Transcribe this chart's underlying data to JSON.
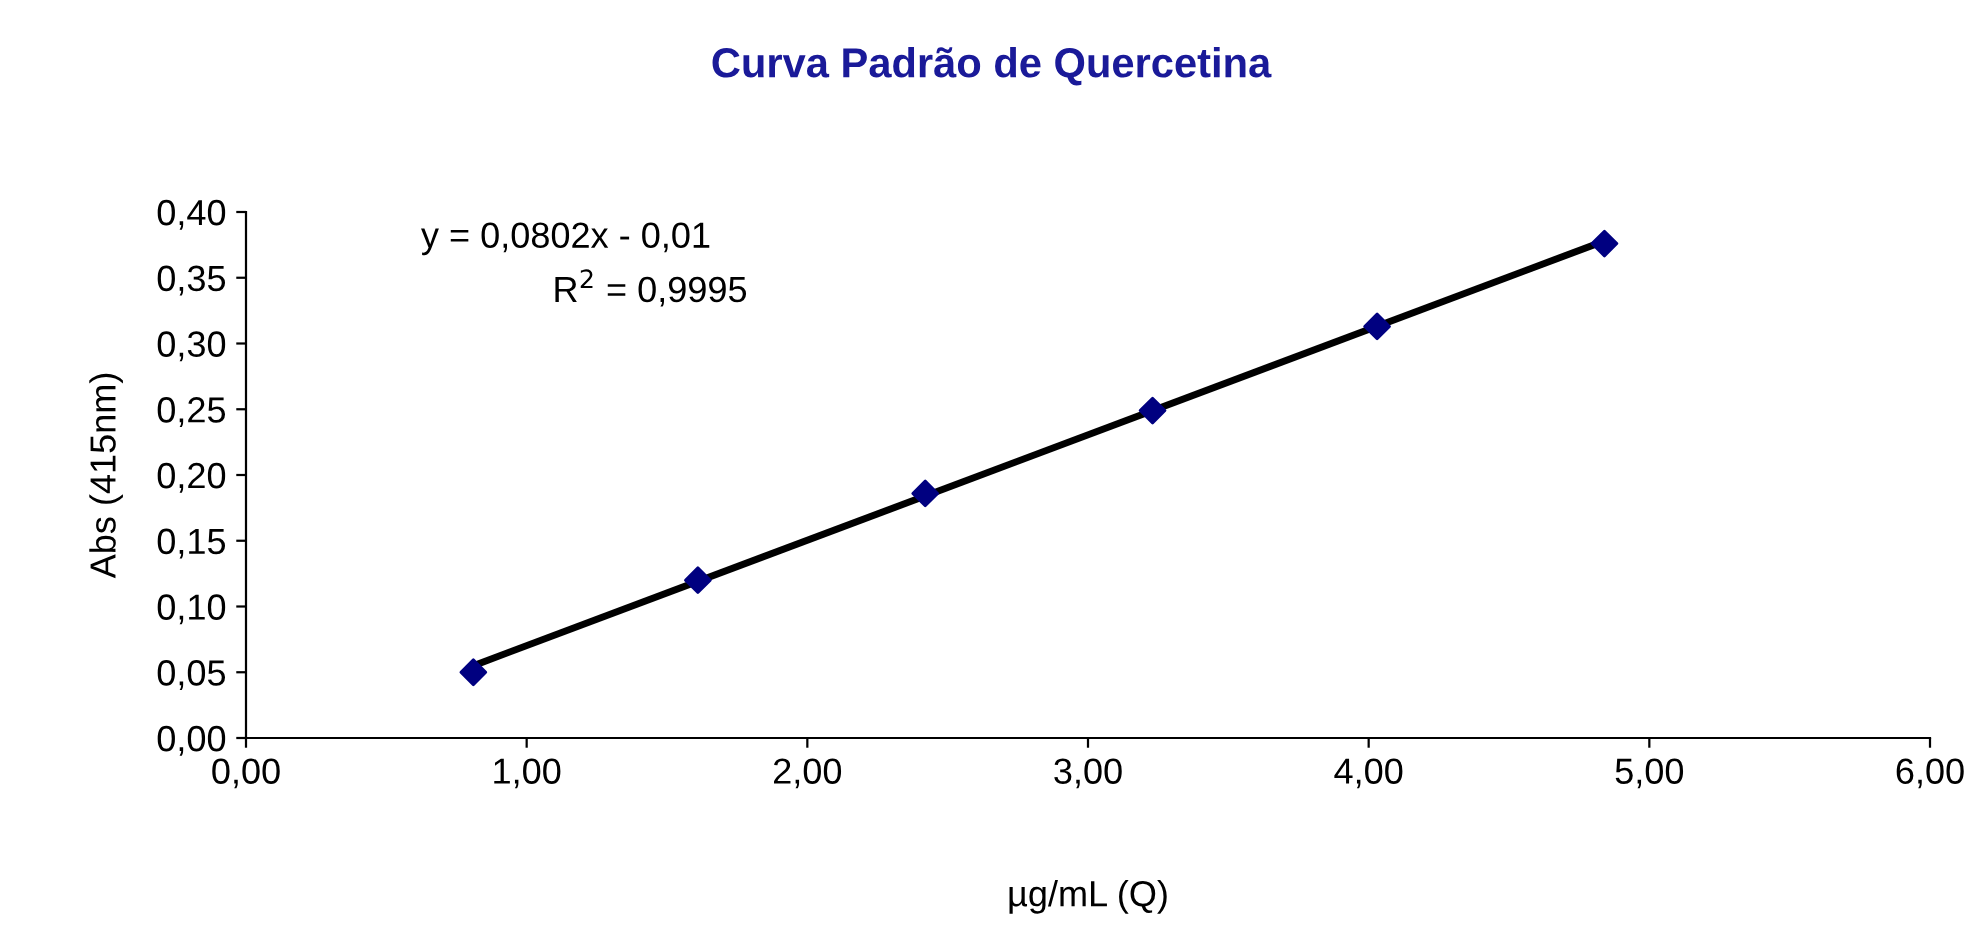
{
  "chart_data": {
    "type": "scatter",
    "title": "Curva Padrão de Quercetina",
    "xlabel": "µg/mL (Q)",
    "ylabel": "Abs (415nm)",
    "annotations": [
      "y = 0,0802x - 0,01",
      "R$^{2}$ = 0,9995"
    ],
    "series": [
      {
        "color": "#000080",
        "marker": "diamond",
        "x": [
          0.81,
          1.61,
          2.42,
          3.23,
          4.03,
          4.84
        ],
        "values": [
          0.05,
          0.12,
          0.186,
          0.249,
          0.313,
          0.376
        ]
      },
      {
        "type": "line",
        "color": "#000000",
        "marker": "none",
        "line_style": "solid",
        "x": [
          0.81,
          4.84
        ],
        "values": [
          0.055,
          0.378
        ]
      }
    ],
    "xlim": [
      0,
      6
    ],
    "xticks": [
      {
        "value": 0,
        "label": "0,00"
      },
      {
        "value": 1,
        "label": "1,00"
      },
      {
        "value": 2,
        "label": "2,00"
      },
      {
        "value": 3,
        "label": "3,00"
      },
      {
        "value": 4,
        "label": "4,00"
      },
      {
        "value": 5,
        "label": "5,00"
      },
      {
        "value": 6,
        "label": "6,00"
      }
    ],
    "ylim": [
      0,
      0.4
    ],
    "yticks": [
      {
        "value": 0,
        "label": "0,00"
      },
      {
        "value": 0.05,
        "label": "0,05"
      },
      {
        "value": 0.1,
        "label": "0,10"
      },
      {
        "value": 0.15,
        "label": "0,15"
      },
      {
        "value": 0.2,
        "label": "0,20"
      },
      {
        "value": 0.25,
        "label": "0,25"
      },
      {
        "value": 0.3,
        "label": "0,30"
      },
      {
        "value": 0.35,
        "label": "0,35"
      },
      {
        "value": 0.4,
        "label": "0,40"
      }
    ],
    "grid": false,
    "legend": false
  }
}
